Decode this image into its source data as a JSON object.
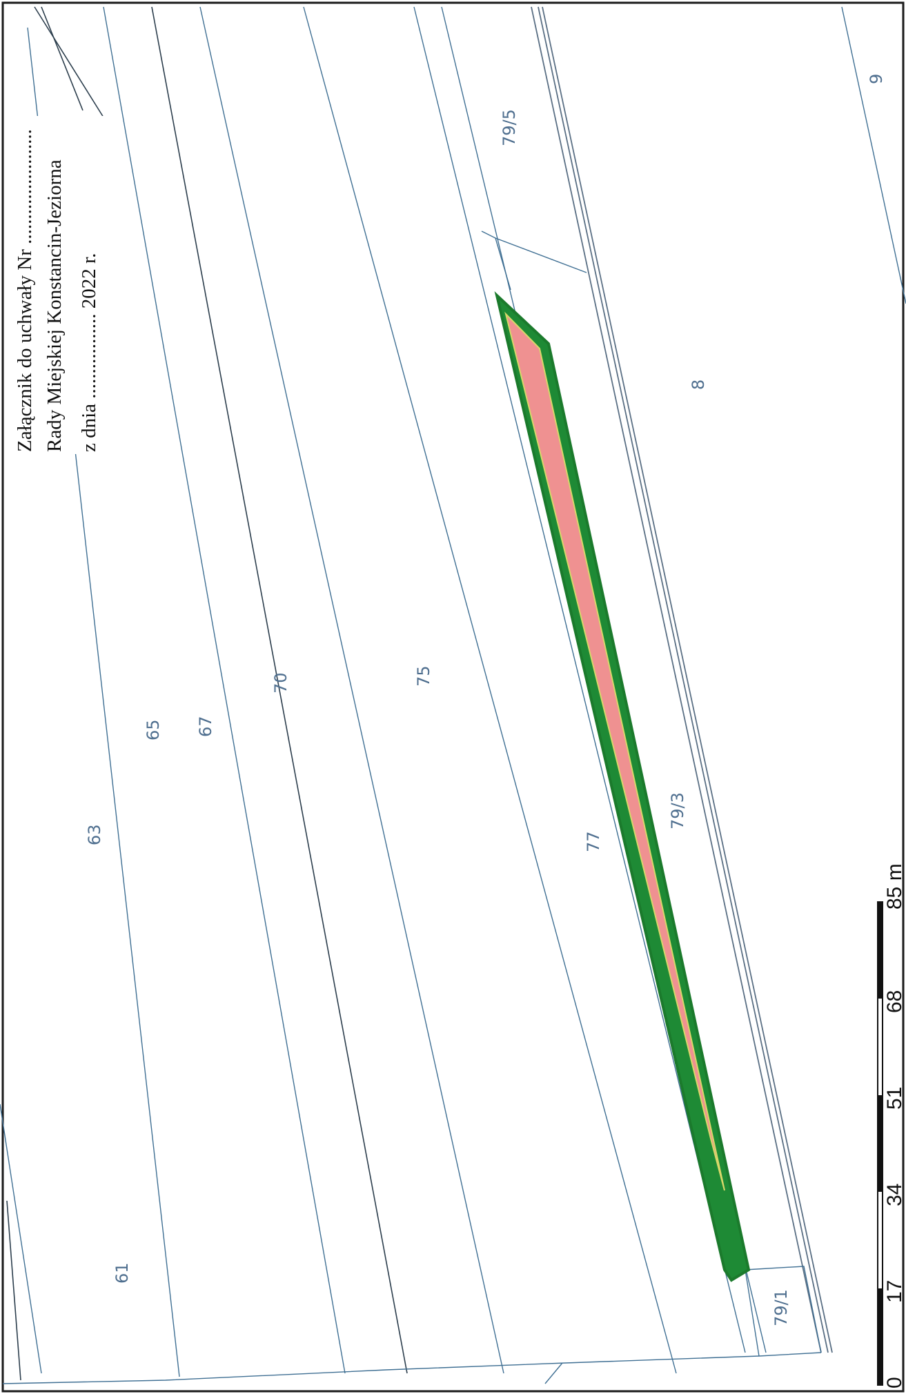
{
  "caption": {
    "line1": "Załącznik do uchwały Nr .......................",
    "line2": "Rady Miejskiej Konstancin-Jeziorna",
    "line3": "z dnia ................. 2022 r."
  },
  "parcels": {
    "p61": "61",
    "p63": "63",
    "p65": "65",
    "p67": "67",
    "p70": "70",
    "p75": "75",
    "p77": "77",
    "p79_1": "79/1",
    "p79_3": "79/3",
    "p79_5": "79/5",
    "p8": "8",
    "p9": "9"
  },
  "scale_bar": {
    "ticks": [
      "0",
      "17",
      "34",
      "51",
      "68",
      "85 m"
    ]
  },
  "colors": {
    "highlight_fill": "#ef9191",
    "highlight_border": "#1e8a35",
    "parcel_line": "#3f6f93",
    "label": "#4f6f8f"
  }
}
